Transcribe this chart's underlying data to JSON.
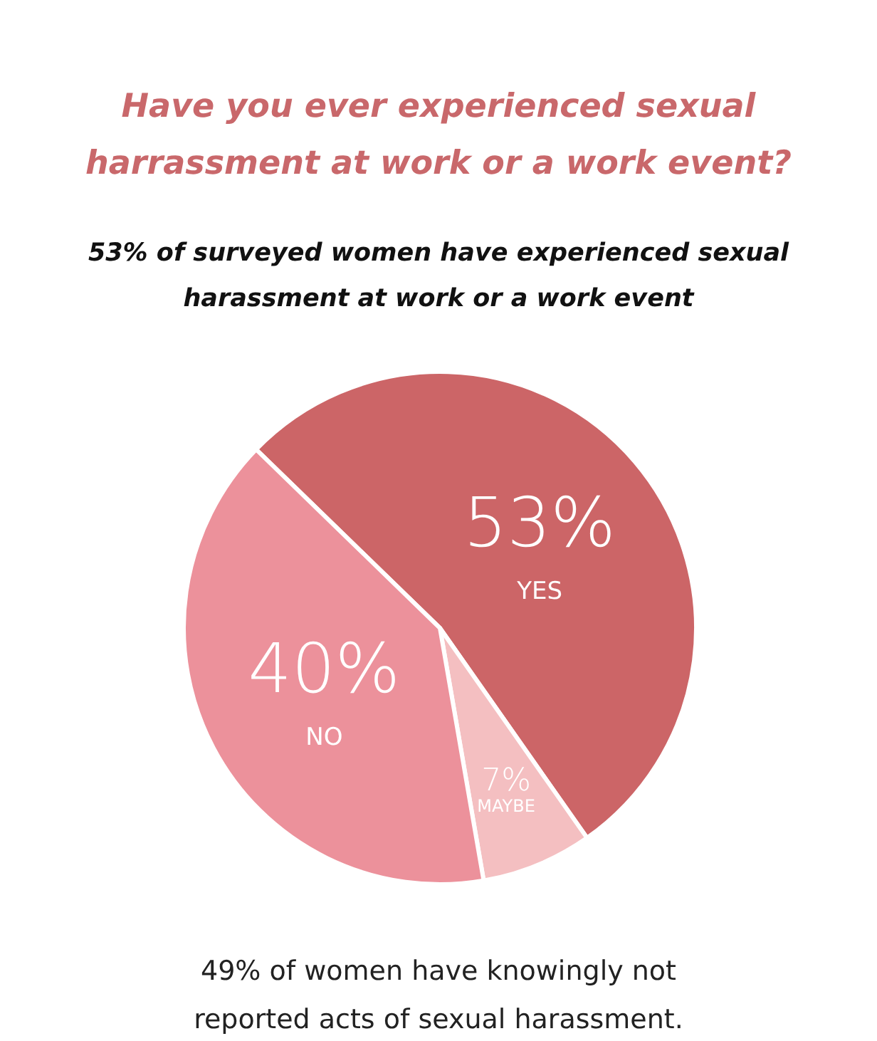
{
  "chart_data": {
    "type": "pie",
    "title": "Have you ever experienced sexual harrassment at work or a work event?",
    "subtitle": "53% of surveyed women have experienced sexual harassment at work or a work event",
    "categories": [
      "YES",
      "MAYBE",
      "NO"
    ],
    "values": [
      53,
      7,
      40
    ],
    "colors": [
      "#cc6567",
      "#f4bfc1",
      "#ec919b"
    ],
    "value_labels": [
      "53%",
      "7%",
      "40%"
    ],
    "annotations": [
      "49% of women have knowingly not reported acts of sexual harassment."
    ]
  }
}
